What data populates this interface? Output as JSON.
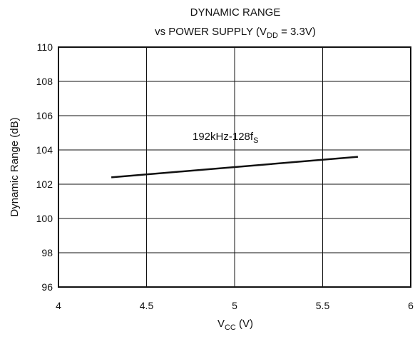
{
  "chart_data": {
    "type": "line",
    "title": {
      "line1": "DYNAMIC RANGE",
      "line2_prefix": "vs POWER SUPPLY (V",
      "line2_sub": "DD",
      "line2_suffix": " = 3.3V)"
    },
    "xlabel": {
      "main": "V",
      "sub": "CC",
      "suffix": " (V)"
    },
    "ylabel": "Dynamic Range (dB)",
    "xlim": [
      4,
      6
    ],
    "ylim": [
      96,
      110
    ],
    "x_ticks": [
      4,
      4.5,
      5,
      5.5,
      6
    ],
    "y_ticks": [
      96,
      98,
      100,
      102,
      104,
      106,
      108,
      110
    ],
    "grid": true,
    "series": [
      {
        "name_main": "192kHz-128f",
        "name_sub": "S",
        "x": [
          4.3,
          5.7
        ],
        "y": [
          102.4,
          103.6
        ]
      }
    ]
  }
}
